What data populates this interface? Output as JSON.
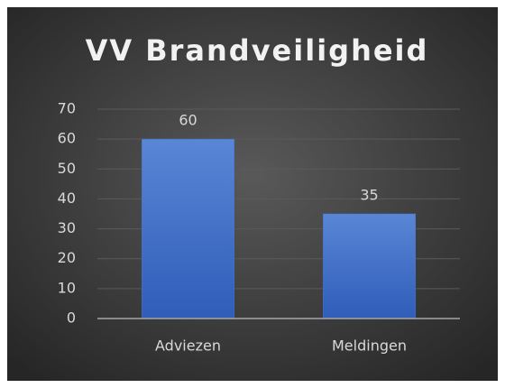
{
  "chart_data": {
    "type": "bar",
    "title": "VV Brandveiligheid",
    "categories": [
      "Adviezen",
      "Meldingen"
    ],
    "values": [
      60,
      35
    ],
    "color": "#4472c4",
    "ylim": [
      0,
      70
    ],
    "yticks": [
      0,
      10,
      20,
      30,
      40,
      50,
      60,
      70
    ],
    "grid": true
  }
}
